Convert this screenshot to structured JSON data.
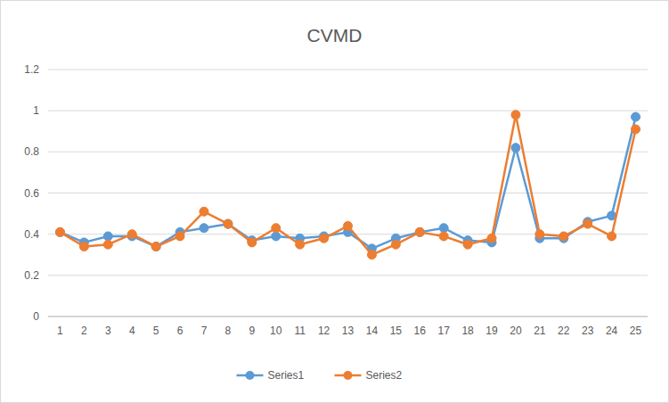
{
  "chart_data": {
    "type": "line",
    "title": "CVMD",
    "categories": [
      "1",
      "2",
      "3",
      "4",
      "5",
      "6",
      "7",
      "8",
      "9",
      "10",
      "11",
      "12",
      "13",
      "14",
      "15",
      "16",
      "17",
      "18",
      "19",
      "20",
      "21",
      "22",
      "23",
      "24",
      "25"
    ],
    "series": [
      {
        "name": "Series1",
        "color": "#5b9bd5",
        "marker": "circle",
        "values": [
          0.41,
          0.36,
          0.39,
          0.39,
          0.34,
          0.41,
          0.43,
          0.45,
          0.37,
          0.39,
          0.38,
          0.39,
          0.41,
          0.33,
          0.38,
          0.41,
          0.43,
          0.37,
          0.36,
          0.82,
          0.38,
          0.38,
          0.46,
          0.49,
          0.97
        ]
      },
      {
        "name": "Series2",
        "color": "#ed7d31",
        "marker": "circle",
        "values": [
          0.41,
          0.34,
          0.35,
          0.4,
          0.34,
          0.39,
          0.51,
          0.45,
          0.36,
          0.43,
          0.35,
          0.38,
          0.44,
          0.3,
          0.35,
          0.41,
          0.39,
          0.35,
          0.38,
          0.98,
          0.4,
          0.39,
          0.45,
          0.39,
          0.91
        ]
      }
    ],
    "ylim": [
      0,
      1.2
    ],
    "yticks": [
      0,
      0.2,
      0.4,
      0.6,
      0.8,
      1,
      1.2
    ],
    "grid": true,
    "legend": "bottom"
  }
}
